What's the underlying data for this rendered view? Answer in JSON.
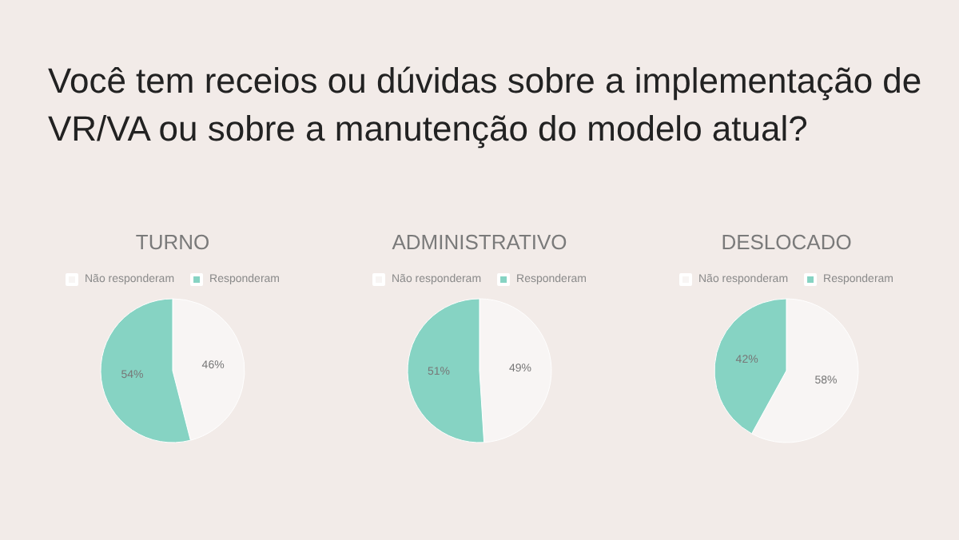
{
  "chart_data": [
    {
      "type": "other",
      "title": "Você tem receios ou dúvidas sobre a implementação de VR/VA ou sobre a manutenção do modelo atual?"
    },
    {
      "type": "pie",
      "title": "TURNO",
      "categories": [
        "Não responderam",
        "Responderam"
      ],
      "values": [
        46,
        54
      ],
      "value_labels": [
        "46%",
        "54%"
      ],
      "colors": [
        "#f8f5f4",
        "#86d3c3"
      ],
      "legend": "top"
    },
    {
      "type": "pie",
      "title": "ADMINISTRATIVO",
      "categories": [
        "Não responderam",
        "Responderam"
      ],
      "values": [
        49,
        51
      ],
      "value_labels": [
        "49%",
        "51%"
      ],
      "colors": [
        "#f8f5f4",
        "#86d3c3"
      ],
      "legend": "top"
    },
    {
      "type": "pie",
      "title": "DESLOCADO",
      "categories": [
        "Não responderam",
        "Responderam"
      ],
      "values": [
        58,
        42
      ],
      "value_labels": [
        "58%",
        "42%"
      ],
      "colors": [
        "#f8f5f4",
        "#86d3c3"
      ],
      "legend": "top"
    }
  ]
}
